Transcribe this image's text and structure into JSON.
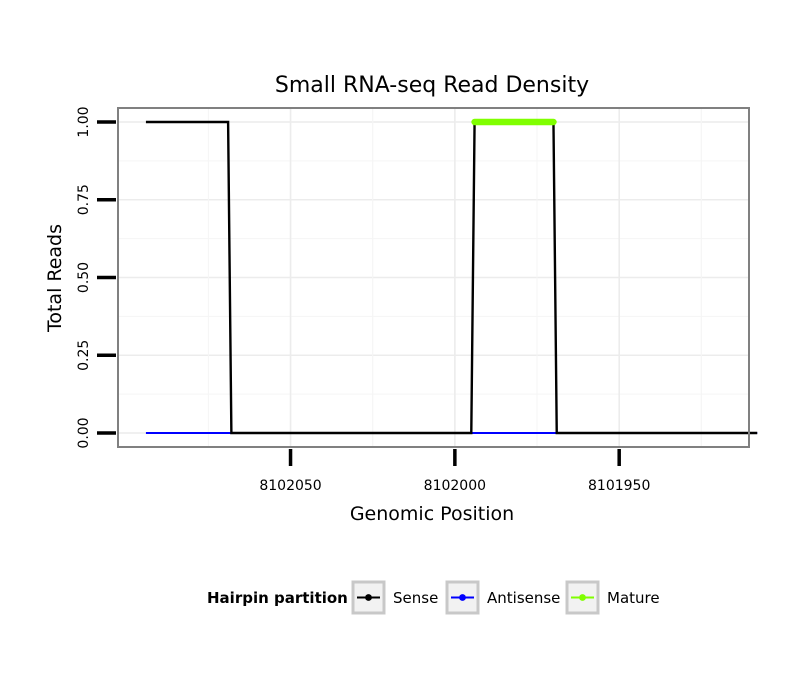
{
  "chart_data": {
    "type": "line",
    "title": "Small RNA-seq Read Density",
    "xlabel": "Genomic Position",
    "ylabel": "Total Reads",
    "x_reversed": true,
    "xlim": [
      8102102.5,
      8101910.5
    ],
    "ylim": [
      -0.045,
      1.045
    ],
    "x_ticks": [
      8102050,
      8102000,
      8101950
    ],
    "x_tick_labels": [
      "8102050",
      "8102000",
      "8101950"
    ],
    "y_ticks": [
      0,
      0.25,
      0.5,
      0.75,
      1.0
    ],
    "y_tick_labels": [
      "0.00",
      "0.25",
      "0.50",
      "0.75",
      "1.00"
    ],
    "grid": true,
    "legend": {
      "title": "Hairpin partition",
      "placement": "bottom",
      "items": [
        {
          "name": "Sense",
          "color": "#000000"
        },
        {
          "name": "Antisense",
          "color": "#0000ff"
        },
        {
          "name": "Mature",
          "color": "#80ff00"
        }
      ]
    },
    "series": [
      {
        "name": "Sense",
        "color": "#000000",
        "x": [
          8102094,
          8102069,
          8102068,
          8101995,
          8101994,
          8101970,
          8101969,
          8101908
        ],
        "y": [
          1,
          1,
          0,
          0,
          1,
          1,
          0,
          0
        ]
      },
      {
        "name": "Antisense",
        "color": "#0000ff",
        "x": [
          8102094,
          8101908
        ],
        "y": [
          0,
          0
        ]
      },
      {
        "name": "Mature",
        "color": "#80ff00",
        "x": [
          8101994,
          8101970
        ],
        "y": [
          1,
          1
        ]
      }
    ]
  }
}
